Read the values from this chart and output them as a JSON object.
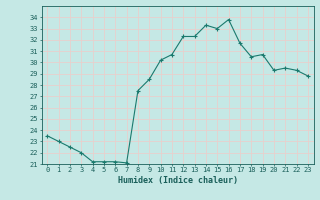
{
  "x": [
    0,
    1,
    2,
    3,
    4,
    5,
    6,
    7,
    8,
    9,
    10,
    11,
    12,
    13,
    14,
    15,
    16,
    17,
    18,
    19,
    20,
    21,
    22,
    23
  ],
  "y": [
    23.5,
    23.0,
    22.5,
    22.0,
    21.2,
    21.2,
    21.2,
    21.1,
    27.5,
    28.5,
    30.2,
    30.7,
    32.3,
    32.3,
    33.3,
    33.0,
    33.8,
    31.7,
    30.5,
    30.7,
    29.3,
    29.5,
    29.3,
    28.8
  ],
  "line_color": "#1a7a6e",
  "marker": "+",
  "marker_size": 3,
  "marker_lw": 0.8,
  "line_width": 0.8,
  "xlabel": "Humidex (Indice chaleur)",
  "ylim": [
    21,
    35
  ],
  "xlim": [
    -0.5,
    23.5
  ],
  "yticks": [
    21,
    22,
    23,
    24,
    25,
    26,
    27,
    28,
    29,
    30,
    31,
    32,
    33,
    34
  ],
  "xticks": [
    0,
    1,
    2,
    3,
    4,
    5,
    6,
    7,
    8,
    9,
    10,
    11,
    12,
    13,
    14,
    15,
    16,
    17,
    18,
    19,
    20,
    21,
    22,
    23
  ],
  "bg_color": "#c5e8e5",
  "grid_color": "#e8d0cc",
  "tick_color": "#1a5f5a",
  "label_color": "#1a5f5a",
  "tick_fontsize": 5.0,
  "xlabel_fontsize": 6.0
}
